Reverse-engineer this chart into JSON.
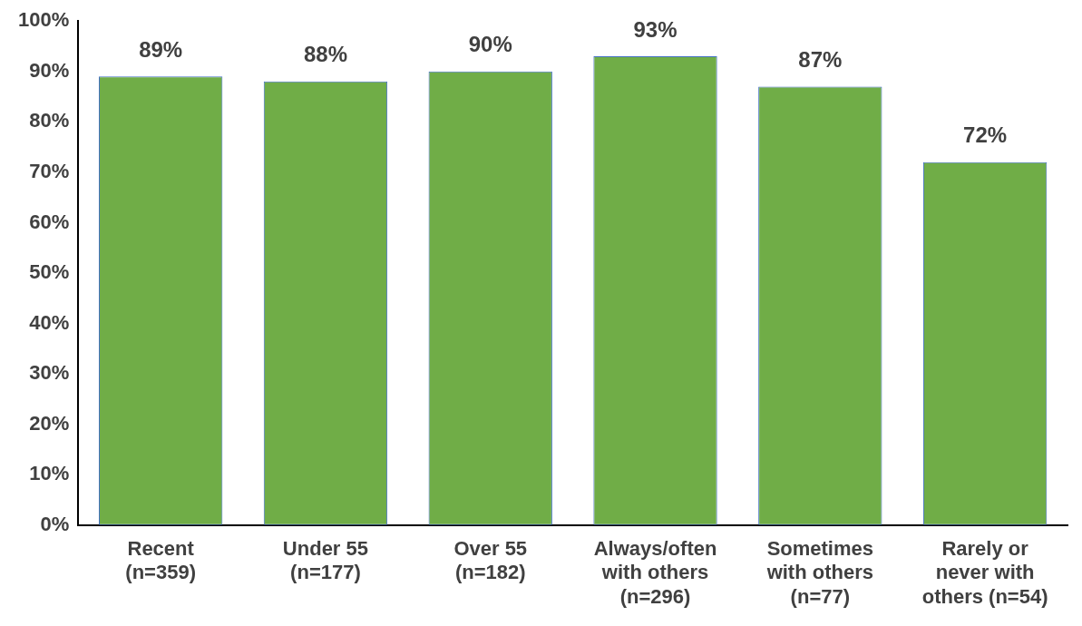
{
  "chart_data": {
    "type": "bar",
    "categories": [
      "Recent\n(n=359)",
      "Under 55\n(n=177)",
      "Over 55\n(n=182)",
      "Always/often\nwith others\n(n=296)",
      "Sometimes\nwith others\n(n=77)",
      "Rarely or\nnever with\nothers (n=54)"
    ],
    "values": [
      89,
      88,
      90,
      93,
      87,
      72
    ],
    "value_labels": [
      "89%",
      "88%",
      "90%",
      "93%",
      "87%",
      "72%"
    ],
    "color": "#70ad47",
    "ylim": [
      0,
      100
    ],
    "yticks": [
      {
        "value": 0,
        "label": "0%"
      },
      {
        "value": 10,
        "label": "10%"
      },
      {
        "value": 20,
        "label": "20%"
      },
      {
        "value": 30,
        "label": "30%"
      },
      {
        "value": 40,
        "label": "40%"
      },
      {
        "value": 50,
        "label": "50%"
      },
      {
        "value": 60,
        "label": "60%"
      },
      {
        "value": 70,
        "label": "70%"
      },
      {
        "value": 80,
        "label": "80%"
      },
      {
        "value": 90,
        "label": "90%"
      },
      {
        "value": 100,
        "label": "100%"
      }
    ],
    "grid": false,
    "legend": false
  }
}
